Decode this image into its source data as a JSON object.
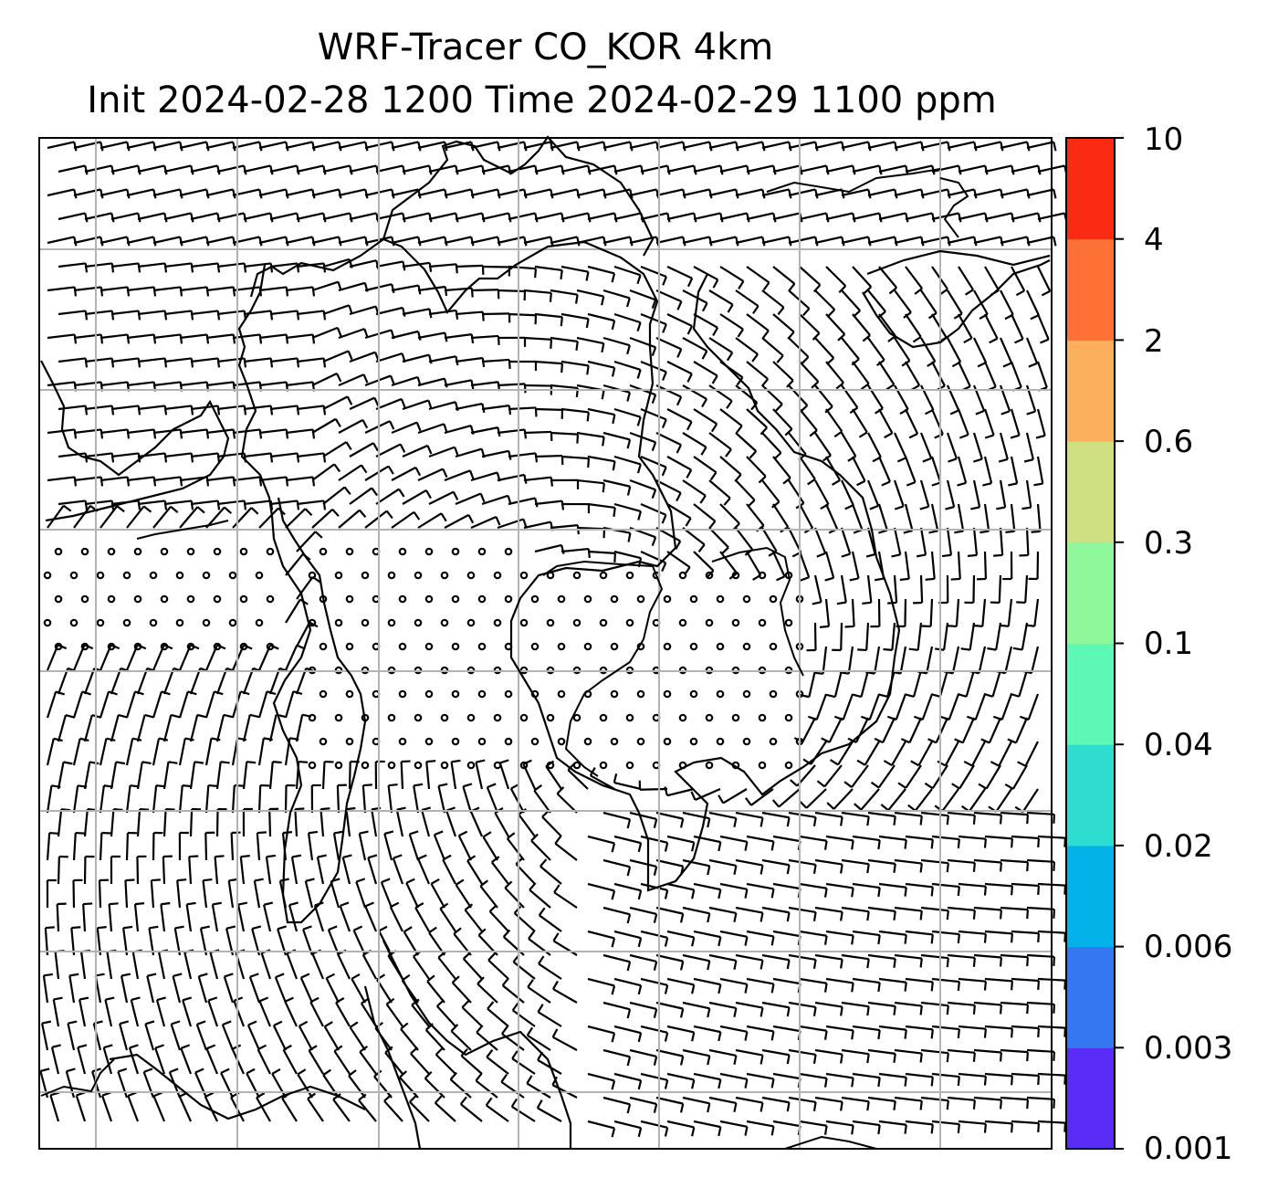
{
  "title": {
    "line1": "WRF-Tracer CO_KOR 4km",
    "line2": "Init 2024-02-28 1200 Time 2024-02-29 1100 ppm"
  },
  "colorbar": {
    "unit": "ppm",
    "levels": [
      "0.001",
      "0.003",
      "0.006",
      "0.02",
      "0.04",
      "0.1",
      "0.3",
      "0.6",
      "2",
      "4",
      "10"
    ],
    "colors": [
      "#5b2cf6",
      "#3577f0",
      "#03b2e9",
      "#2fdcd0",
      "#5df7b6",
      "#8ef79a",
      "#cfe083",
      "#fcb05e",
      "#fd7036",
      "#fb2a13"
    ]
  },
  "map": {
    "gridline_color": "#b3b3b3",
    "coastline_color": "#000000",
    "wind_barb_color": "#000000"
  }
}
